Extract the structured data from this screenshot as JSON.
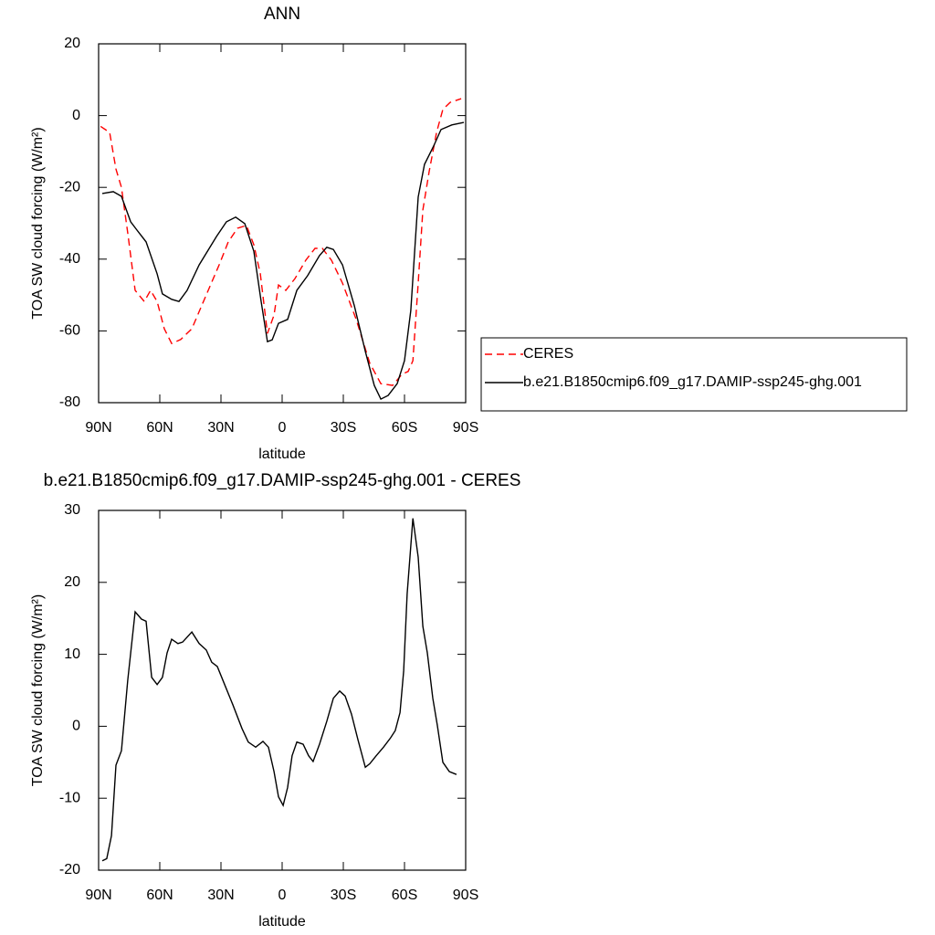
{
  "chart_data": [
    {
      "type": "line",
      "title": "ANN",
      "xlabel": "latitude",
      "ylabel": "TOA SW cloud forcing (W/m²)",
      "xlim": [
        90,
        -90
      ],
      "xticks": [
        {
          "value": 90,
          "label": "90N"
        },
        {
          "value": 60,
          "label": "60N"
        },
        {
          "value": 30,
          "label": "30N"
        },
        0,
        {
          "value": -30,
          "label": "30S"
        },
        {
          "value": -60,
          "label": "60S"
        },
        {
          "value": -90,
          "label": "90S"
        }
      ],
      "ylim": [
        -80,
        20
      ],
      "yticks": [
        -80,
        -60,
        -40,
        -20,
        0,
        20
      ],
      "legend": "right",
      "series": [
        {
          "name": "CERES",
          "color": "#ff0000",
          "dashed": true,
          "x": [
            89,
            84.6,
            81.5,
            78.8,
            75.7,
            72.1,
            67.6,
            64.5,
            61.3,
            57.8,
            54.2,
            49.7,
            44.3,
            37.6,
            30.9,
            26.4,
            21.9,
            17.5,
            13.9,
            10.7,
            7.2,
            4.0,
            1.8,
            -1.8,
            -6.3,
            -11.6,
            -16.1,
            -19.7,
            -24.2,
            -29.6,
            -36.3,
            -43.0,
            -48.4,
            -54.2,
            -58.7,
            -61.8,
            -64.1,
            -66.7,
            -69.0,
            -72.1,
            -75.7,
            -78.8,
            -82.4,
            -87.8
          ],
          "values": [
            -3,
            -4.7,
            -14.9,
            -20,
            -32.7,
            -48.7,
            -51.8,
            -48.7,
            -51.8,
            -59.4,
            -63.5,
            -62.4,
            -59.4,
            -50.5,
            -41.6,
            -35.2,
            -31.4,
            -30.6,
            -36,
            -44.1,
            -60.7,
            -55.6,
            -47.2,
            -48.7,
            -45.4,
            -40.3,
            -37,
            -37,
            -40.3,
            -46.7,
            -56.8,
            -69,
            -74.7,
            -75.2,
            -72.1,
            -71.3,
            -68.3,
            -46.7,
            -26.3,
            -15.6,
            -4.7,
            1.7,
            3.7,
            4.7
          ]
        },
        {
          "name": "b.e21.B1850cmip6.f09_g17.DAMIP-ssp245-ghg.001",
          "color": "#000000",
          "dashed": false,
          "x": [
            88.2,
            82.8,
            78.8,
            74.3,
            71.2,
            66.7,
            61.3,
            58.7,
            54.2,
            50.6,
            46.6,
            40.7,
            32.2,
            27.3,
            22.8,
            18.3,
            13.9,
            10.3,
            7.2,
            4.9,
            1.8,
            -2.7,
            -7.2,
            -12.5,
            -18.3,
            -21.9,
            -25.1,
            -29.6,
            -35.4,
            -40.8,
            -45.2,
            -48.4,
            -52.0,
            -56.4,
            -60.0,
            -63.1,
            -66.7,
            -69.8,
            -74.3,
            -77.9,
            -83.2,
            -89.1
          ],
          "values": [
            -21.7,
            -21.2,
            -22.5,
            -29.6,
            -31.9,
            -35.2,
            -44.1,
            -49.7,
            -51.2,
            -51.8,
            -48.7,
            -41.6,
            -33.7,
            -29.6,
            -28.3,
            -30.1,
            -37.8,
            -51.8,
            -63,
            -62.5,
            -57.9,
            -56.8,
            -48.7,
            -44.6,
            -39.0,
            -36.7,
            -37.3,
            -41.6,
            -53.0,
            -65.7,
            -75.2,
            -79,
            -78,
            -74.7,
            -68.3,
            -54.3,
            -22.7,
            -13.6,
            -8.5,
            -3.9,
            -2.6,
            -1.9
          ]
        }
      ]
    },
    {
      "type": "line",
      "title": "b.e21.B1850cmip6.f09_g17.DAMIP-ssp245-ghg.001 - CERES",
      "xlabel": "latitude",
      "ylabel": "TOA SW cloud forcing (W/m²)",
      "xlim": [
        90,
        -90
      ],
      "xticks": [
        {
          "value": 90,
          "label": "90N"
        },
        {
          "value": 60,
          "label": "60N"
        },
        {
          "value": 30,
          "label": "30N"
        },
        0,
        {
          "value": -30,
          "label": "30S"
        },
        {
          "value": -60,
          "label": "60S"
        },
        {
          "value": -90,
          "label": "90S"
        }
      ],
      "ylim": [
        -20,
        30
      ],
      "yticks": [
        -20,
        -10,
        0,
        10,
        20,
        30
      ],
      "series": [
        {
          "color": "#000000",
          "dashed": false,
          "x": [
            88.2,
            86,
            83.7,
            81.5,
            78.8,
            75.7,
            72.1,
            69,
            66.7,
            64,
            61.3,
            58.7,
            56.4,
            54.2,
            51.1,
            48.8,
            44.3,
            40.7,
            37.2,
            34.5,
            31.8,
            28.2,
            24.2,
            19.7,
            16.6,
            13.0,
            9.4,
            6.7,
            4.0,
            1.8,
            -0.5,
            -2.7,
            -4.9,
            -7.2,
            -10.3,
            -13.0,
            -15.2,
            -18.3,
            -21.9,
            -25.1,
            -28.2,
            -30.9,
            -34.0,
            -37.2,
            -40.8,
            -43,
            -46.1,
            -49.7,
            -53.2,
            -55.5,
            -57.8,
            -59.6,
            -61.3,
            -64.1,
            -66.7,
            -69.0,
            -71.2,
            -73.9,
            -76.1,
            -78.8,
            -82.0,
            -85.5
          ],
          "values": [
            -18.7,
            -18.4,
            -15.2,
            -5.4,
            -3.4,
            6.4,
            15.9,
            14.9,
            14.6,
            6.8,
            5.8,
            6.8,
            10.2,
            12.1,
            11.5,
            11.7,
            13.1,
            11.5,
            10.6,
            8.9,
            8.3,
            5.8,
            3.0,
            -0.3,
            -2.2,
            -2.9,
            -2.1,
            -2.9,
            -6.3,
            -9.8,
            -11.0,
            -8.5,
            -4.1,
            -2.2,
            -2.5,
            -4.1,
            -4.9,
            -2.5,
            0.7,
            3.9,
            4.9,
            4.2,
            1.7,
            -1.9,
            -5.7,
            -5.2,
            -4.1,
            -2.9,
            -1.6,
            -0.6,
            1.9,
            7.7,
            18.4,
            28.9,
            23.5,
            13.9,
            10.2,
            3.9,
            0.1,
            -5.0,
            -6.3,
            -6.7
          ]
        }
      ]
    }
  ]
}
